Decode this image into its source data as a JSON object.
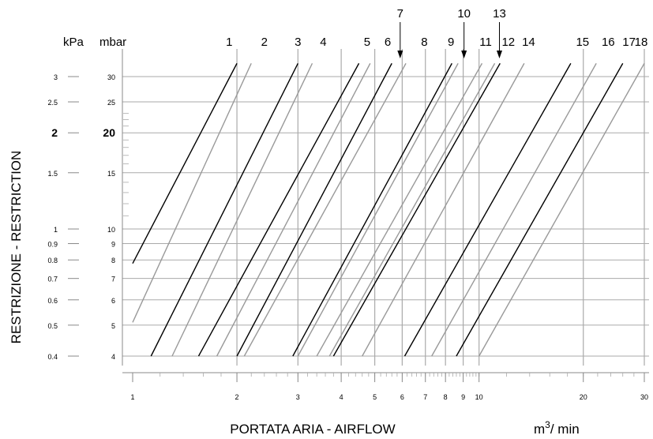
{
  "chart_data": {
    "type": "line",
    "xlabel": "PORTATA ARIA - AIRFLOW",
    "x_unit": {
      "base": "m",
      "sup": "3",
      "tail": "/ min"
    },
    "ylabel": "RESTRIZIONE - RESTRICTION",
    "y_units": {
      "kpa": "kPa",
      "mbar": "mbar"
    },
    "x_scale": "log",
    "y_scale": "log",
    "xlim": [
      1,
      30
    ],
    "ylim": [
      4,
      35
    ],
    "x_ticks": [
      1,
      2,
      3,
      4,
      5,
      6,
      7,
      8,
      9,
      10,
      20,
      30
    ],
    "y_ticks_mbar": [
      {
        "value": 4,
        "mbar": "4",
        "kpa": "0.4"
      },
      {
        "value": 5,
        "mbar": "5",
        "kpa": "0.5"
      },
      {
        "value": 6,
        "mbar": "6",
        "kpa": "0.6"
      },
      {
        "value": 7,
        "mbar": "7",
        "kpa": "0.7"
      },
      {
        "value": 8,
        "mbar": "8",
        "kpa": "0.8"
      },
      {
        "value": 9,
        "mbar": "9",
        "kpa": "0.9"
      },
      {
        "value": 10,
        "mbar": "10",
        "kpa": "1"
      },
      {
        "value": 15,
        "mbar": "15",
        "kpa": "1.5"
      },
      {
        "value": 20,
        "mbar": "20",
        "kpa": "2",
        "bold": true
      },
      {
        "value": 25,
        "mbar": "25",
        "kpa": "2.5"
      },
      {
        "value": 30,
        "mbar": "30",
        "kpa": "3"
      }
    ],
    "grid": true,
    "series": [
      {
        "name": "1",
        "color": "#000000",
        "x": [
          1.0,
          2.0
        ],
        "y": [
          7.8,
          33
        ]
      },
      {
        "name": "2",
        "color": "#999999",
        "x": [
          1.0,
          2.2
        ],
        "y": [
          5.1,
          33
        ]
      },
      {
        "name": "3",
        "color": "#000000",
        "x": [
          1.13,
          3.0
        ],
        "y": [
          4,
          33
        ]
      },
      {
        "name": "4",
        "color": "#999999",
        "x": [
          1.3,
          3.3
        ],
        "y": [
          4,
          33
        ]
      },
      {
        "name": "5",
        "color": "#000000",
        "x": [
          1.55,
          4.5
        ],
        "y": [
          4,
          33
        ]
      },
      {
        "name": "6",
        "color": "#999999",
        "x": [
          1.75,
          4.85
        ],
        "y": [
          4,
          33
        ]
      },
      {
        "name": "7",
        "color": "#000000",
        "x": [
          2.0,
          5.6
        ],
        "y": [
          4,
          33
        ]
      },
      {
        "name": "8",
        "color": "#999999",
        "x": [
          2.1,
          6.15
        ],
        "y": [
          4,
          33
        ]
      },
      {
        "name": "9",
        "color": "#000000",
        "x": [
          2.9,
          8.35
        ],
        "y": [
          4,
          33
        ]
      },
      {
        "name": "10",
        "color": "#999999",
        "x": [
          3.0,
          8.7
        ],
        "y": [
          4,
          33
        ]
      },
      {
        "name": "11",
        "color": "#999999",
        "x": [
          3.4,
          10.2
        ],
        "y": [
          4,
          33
        ]
      },
      {
        "name": "12",
        "color": "#999999",
        "x": [
          3.7,
          11.1
        ],
        "y": [
          4,
          33
        ]
      },
      {
        "name": "13",
        "color": "#000000",
        "x": [
          3.8,
          11.5
        ],
        "y": [
          4,
          33
        ]
      },
      {
        "name": "14",
        "color": "#999999",
        "x": [
          4.6,
          13.5
        ],
        "y": [
          4,
          33
        ]
      },
      {
        "name": "15",
        "color": "#000000",
        "x": [
          6.1,
          18.4
        ],
        "y": [
          4,
          33
        ]
      },
      {
        "name": "16",
        "color": "#999999",
        "x": [
          7.3,
          21.8
        ],
        "y": [
          4,
          33
        ]
      },
      {
        "name": "17",
        "color": "#000000",
        "x": [
          8.6,
          26.0
        ],
        "y": [
          4,
          33
        ]
      },
      {
        "name": "18",
        "color": "#999999",
        "x": [
          10.0,
          30.0
        ],
        "y": [
          4,
          33
        ]
      }
    ],
    "curve_labels": [
      {
        "text": "1",
        "x": 1.9
      },
      {
        "text": "2",
        "x": 2.4
      },
      {
        "text": "3",
        "x": 3.0
      },
      {
        "text": "4",
        "x": 3.55
      },
      {
        "text": "5",
        "x": 4.75
      },
      {
        "text": "6",
        "x": 5.45
      },
      {
        "text": "8",
        "x": 6.95
      },
      {
        "text": "9",
        "x": 8.3
      },
      {
        "text": "11",
        "x": 10.45
      },
      {
        "text": "12",
        "x": 12.15
      },
      {
        "text": "14",
        "x": 13.9
      },
      {
        "text": "15",
        "x": 19.9
      },
      {
        "text": "16",
        "x": 23.6
      },
      {
        "text": "17",
        "x": 27.1
      },
      {
        "text": "18",
        "x": 32.0
      }
    ],
    "arrow_labels": [
      {
        "text": "7",
        "x": 5.92
      },
      {
        "text": "10",
        "x": 9.05
      },
      {
        "text": "13",
        "x": 11.45
      }
    ]
  }
}
